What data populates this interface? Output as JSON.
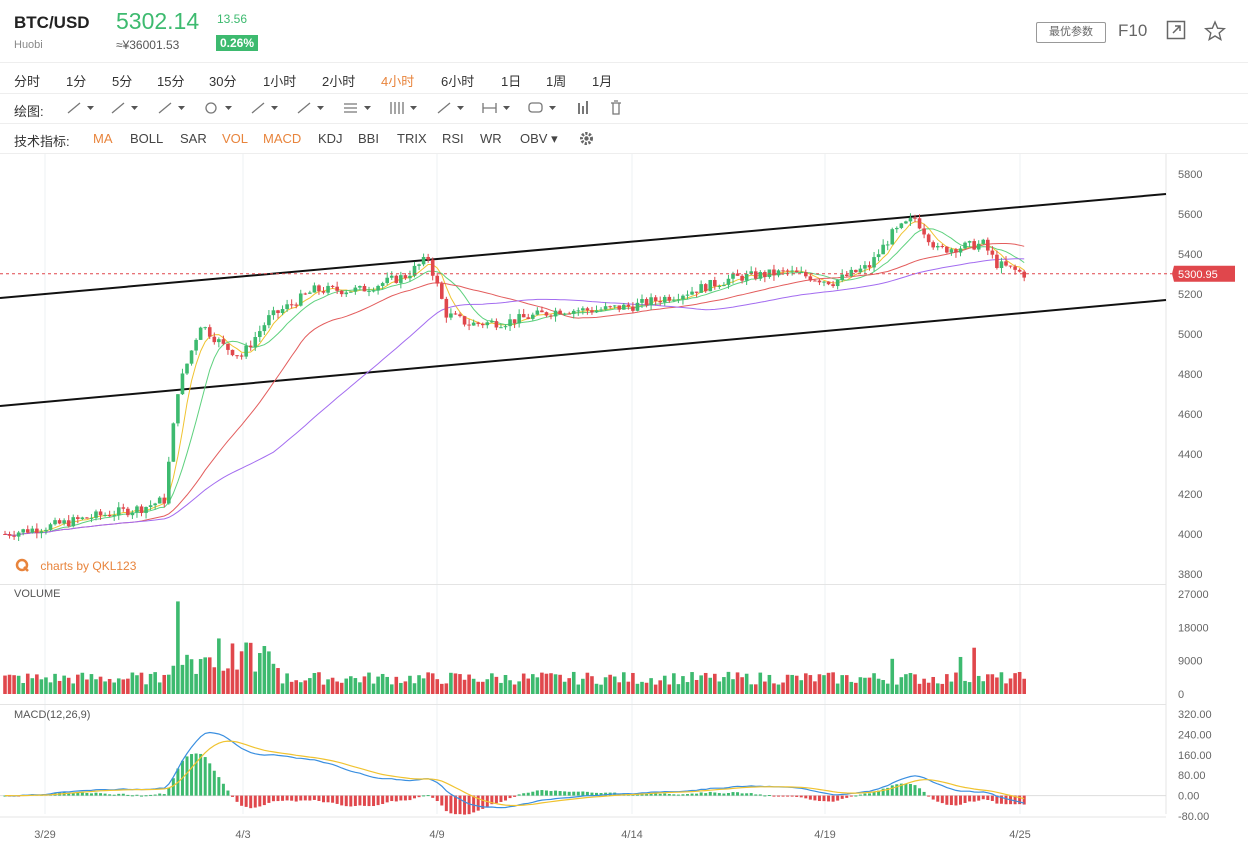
{
  "header": {
    "symbol": "BTC/USD",
    "exchange": "Huobi",
    "price": "5302.14",
    "cny": "≈¥36001.53",
    "change": "13.56",
    "change_pct": "0.26%",
    "params_label": "最优参数",
    "f10_label": "F10"
  },
  "periods": [
    {
      "label": "分时"
    },
    {
      "label": "1分"
    },
    {
      "label": "5分"
    },
    {
      "label": "15分"
    },
    {
      "label": "30分"
    },
    {
      "label": "1小时"
    },
    {
      "label": "2小时"
    },
    {
      "label": "4小时",
      "active": true
    },
    {
      "label": "6小时"
    },
    {
      "label": "1日"
    },
    {
      "label": "1周"
    },
    {
      "label": "1月"
    }
  ],
  "draw_tools": {
    "label": "绘图:",
    "tools": [
      "line-tool-icon",
      "ray-tool-icon",
      "channel-tool-icon",
      "circle-tool-icon",
      "polyline-tool-icon",
      "pattern-tool-icon",
      "fib-tool-icon",
      "gann-tool-icon",
      "arrow-tool-icon",
      "measure-tool-icon",
      "comment-tool-icon",
      "bars-tool-icon",
      "trash-icon"
    ]
  },
  "indicators": {
    "label": "技术指标:",
    "items": [
      {
        "label": "MA",
        "active": true
      },
      {
        "label": "BOLL"
      },
      {
        "label": "SAR"
      },
      {
        "label": "VOL",
        "active": true
      },
      {
        "label": "MACD",
        "active": true
      },
      {
        "label": "KDJ"
      },
      {
        "label": "BBI"
      },
      {
        "label": "TRIX"
      },
      {
        "label": "RSI"
      },
      {
        "label": "WR"
      },
      {
        "label": "OBV ▾"
      }
    ]
  },
  "colors": {
    "up": "#3dba6f",
    "down": "#e0474c",
    "accent": "#e8843c",
    "ma1": "#f0c330",
    "ma2": "#5ed17e",
    "ma3": "#e35d5d",
    "ma4": "#a36cf0",
    "dif": "#3a8fe0",
    "dea": "#f0c330"
  },
  "watermark": "charts by QKL123",
  "chart_data": {
    "type": "candlestick",
    "price_axis": {
      "ticks": [
        5800,
        5600,
        5400,
        5200,
        5000,
        4800,
        4600,
        4400,
        4200,
        4000,
        3800
      ],
      "range": [
        3800,
        5800
      ]
    },
    "last_price_label": "5300.95",
    "x_labels": [
      "3/29",
      "4/3",
      "4/9",
      "4/14",
      "4/19",
      "4/25"
    ],
    "anchors": [
      [
        0,
        4000
      ],
      [
        10,
        4040
      ],
      [
        20,
        4090
      ],
      [
        30,
        4130
      ],
      [
        35,
        4170
      ],
      [
        38,
        4720
      ],
      [
        43,
        5050
      ],
      [
        48,
        4940
      ],
      [
        52,
        4890
      ],
      [
        58,
        5080
      ],
      [
        68,
        5220
      ],
      [
        78,
        5220
      ],
      [
        88,
        5290
      ],
      [
        93,
        5380
      ],
      [
        97,
        5100
      ],
      [
        102,
        5050
      ],
      [
        110,
        5060
      ],
      [
        122,
        5120
      ],
      [
        130,
        5120
      ],
      [
        138,
        5140
      ],
      [
        150,
        5210
      ],
      [
        160,
        5280
      ],
      [
        172,
        5310
      ],
      [
        182,
        5260
      ],
      [
        190,
        5340
      ],
      [
        195,
        5500
      ],
      [
        200,
        5580
      ],
      [
        205,
        5420
      ],
      [
        215,
        5450
      ],
      [
        218,
        5350
      ],
      [
        224,
        5300
      ]
    ],
    "channel": {
      "upper": [
        "5180 at start",
        "5700 at end"
      ],
      "lower": [
        "4640 at start",
        "5170 at end"
      ]
    },
    "volume": {
      "title": "VOLUME",
      "ticks": [
        27000,
        18000,
        9000,
        0
      ]
    },
    "macd": {
      "title": "MACD(12,26,9)",
      "ticks": [
        "320.00",
        "240.00",
        "160.00",
        "80.00",
        "0.00",
        "-80.00"
      ]
    }
  }
}
